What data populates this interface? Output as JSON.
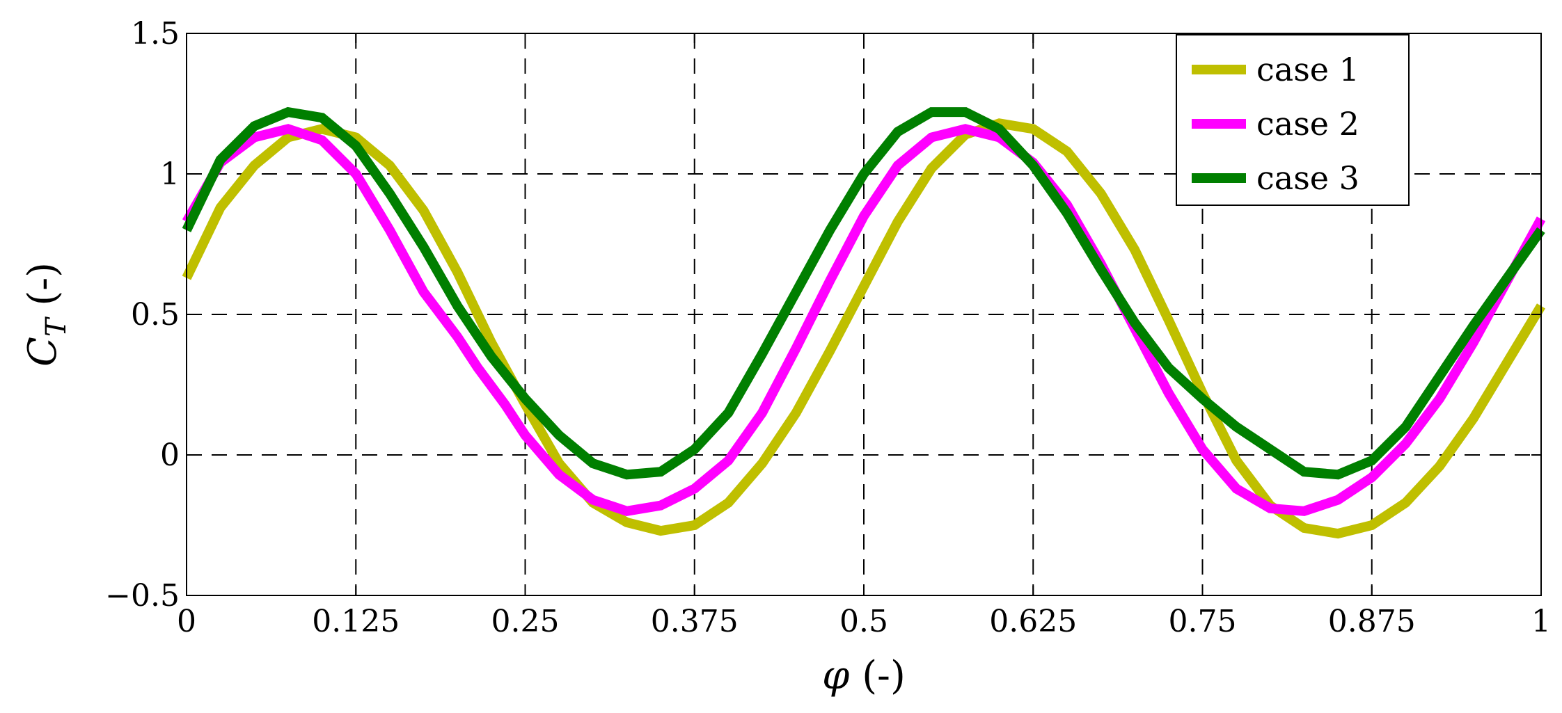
{
  "chart_data": {
    "type": "line",
    "xlabel": "φ (-)",
    "ylabel": "C_T (-)",
    "xlim": [
      0,
      1
    ],
    "ylim": [
      -0.5,
      1.5
    ],
    "xticks": [
      0,
      0.125,
      0.25,
      0.375,
      0.5,
      0.625,
      0.75,
      0.875,
      1
    ],
    "xtick_labels": [
      "0",
      "0.125",
      "0.25",
      "0.375",
      "0.5",
      "0.625",
      "0.75",
      "0.875",
      "1"
    ],
    "yticks": [
      -0.5,
      0,
      0.5,
      1,
      1.5
    ],
    "ytick_labels": [
      "−0.5",
      "0",
      "0.5",
      "1",
      "1.5"
    ],
    "grid": true,
    "legend_position": "top-right",
    "series": [
      {
        "name": "case 1",
        "color": "#bfbf00",
        "x": [
          0.0,
          0.025,
          0.05,
          0.075,
          0.1,
          0.125,
          0.15,
          0.175,
          0.2,
          0.225,
          0.25,
          0.275,
          0.3,
          0.325,
          0.35,
          0.375,
          0.4,
          0.425,
          0.45,
          0.475,
          0.5,
          0.525,
          0.55,
          0.575,
          0.6,
          0.625,
          0.65,
          0.675,
          0.7,
          0.725,
          0.75,
          0.775,
          0.8,
          0.825,
          0.85,
          0.875,
          0.9,
          0.925,
          0.95,
          0.975,
          1.0
        ],
        "values": [
          0.63,
          0.88,
          1.03,
          1.13,
          1.16,
          1.13,
          1.03,
          0.87,
          0.65,
          0.4,
          0.18,
          -0.03,
          -0.17,
          -0.24,
          -0.27,
          -0.25,
          -0.17,
          -0.03,
          0.15,
          0.37,
          0.6,
          0.83,
          1.02,
          1.14,
          1.18,
          1.16,
          1.08,
          0.93,
          0.73,
          0.48,
          0.22,
          -0.02,
          -0.18,
          -0.26,
          -0.28,
          -0.25,
          -0.17,
          -0.04,
          0.13,
          0.33,
          0.53
        ]
      },
      {
        "name": "case 2",
        "color": "#ff00ff",
        "x": [
          0.0,
          0.025,
          0.05,
          0.075,
          0.1,
          0.125,
          0.15,
          0.175,
          0.2,
          0.215,
          0.235,
          0.25,
          0.275,
          0.3,
          0.325,
          0.35,
          0.375,
          0.4,
          0.425,
          0.45,
          0.475,
          0.5,
          0.525,
          0.55,
          0.575,
          0.6,
          0.625,
          0.65,
          0.675,
          0.7,
          0.725,
          0.75,
          0.775,
          0.8,
          0.825,
          0.85,
          0.875,
          0.9,
          0.925,
          0.95,
          0.975,
          1.0
        ],
        "values": [
          0.83,
          1.04,
          1.13,
          1.16,
          1.12,
          1.0,
          0.8,
          0.58,
          0.42,
          0.31,
          0.18,
          0.07,
          -0.07,
          -0.16,
          -0.2,
          -0.18,
          -0.12,
          -0.02,
          0.15,
          0.38,
          0.62,
          0.85,
          1.03,
          1.13,
          1.16,
          1.13,
          1.04,
          0.89,
          0.68,
          0.45,
          0.22,
          0.02,
          -0.12,
          -0.19,
          -0.2,
          -0.16,
          -0.08,
          0.04,
          0.2,
          0.4,
          0.62,
          0.84
        ]
      },
      {
        "name": "case 3",
        "color": "#007f00",
        "x": [
          0.0,
          0.025,
          0.05,
          0.075,
          0.1,
          0.125,
          0.15,
          0.175,
          0.2,
          0.225,
          0.25,
          0.275,
          0.3,
          0.325,
          0.35,
          0.375,
          0.4,
          0.425,
          0.45,
          0.475,
          0.5,
          0.525,
          0.55,
          0.575,
          0.6,
          0.625,
          0.65,
          0.675,
          0.7,
          0.725,
          0.75,
          0.775,
          0.8,
          0.825,
          0.85,
          0.875,
          0.9,
          0.925,
          0.95,
          0.975,
          1.0
        ],
        "values": [
          0.8,
          1.05,
          1.17,
          1.22,
          1.2,
          1.1,
          0.93,
          0.74,
          0.53,
          0.35,
          0.2,
          0.07,
          -0.03,
          -0.07,
          -0.06,
          0.02,
          0.15,
          0.36,
          0.58,
          0.8,
          1.0,
          1.15,
          1.22,
          1.22,
          1.16,
          1.03,
          0.86,
          0.66,
          0.47,
          0.31,
          0.2,
          0.1,
          0.02,
          -0.06,
          -0.07,
          -0.02,
          0.1,
          0.28,
          0.46,
          0.63,
          0.8
        ]
      }
    ]
  }
}
